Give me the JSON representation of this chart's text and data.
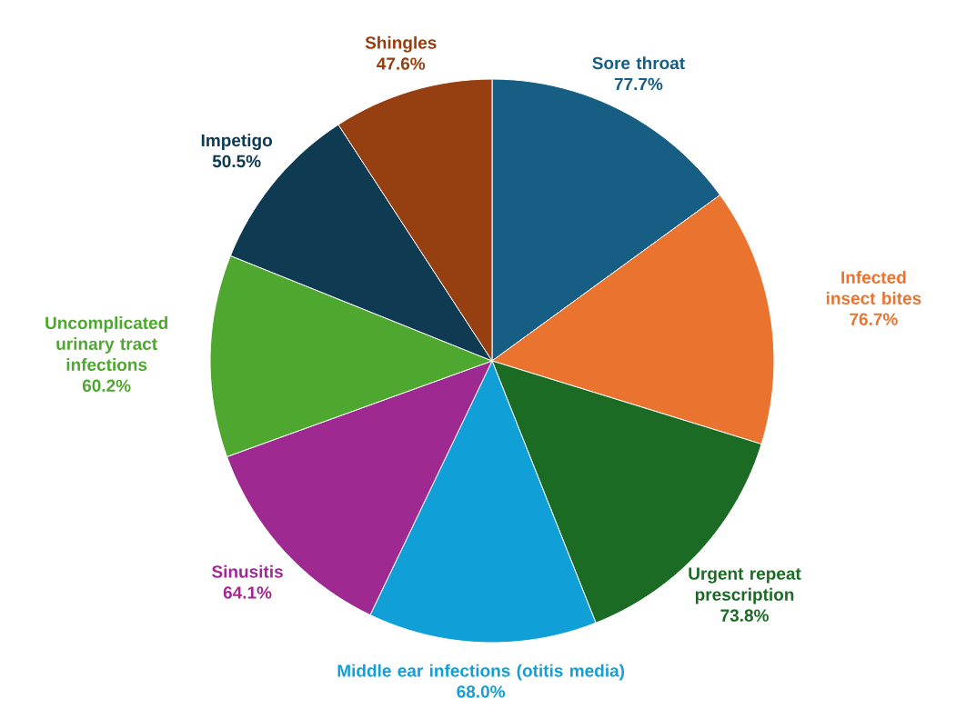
{
  "chart_data": {
    "type": "pie",
    "categories": [
      "Sore throat",
      "Infected insect bites",
      "Urgent repeat prescription",
      "Middle ear infections (otitis media)",
      "Sinusitis",
      "Uncomplicated urinary tract infections",
      "Impetigo",
      "Shingles"
    ],
    "values": [
      77.7,
      76.7,
      73.8,
      68.0,
      64.1,
      60.2,
      50.5,
      47.6
    ],
    "value_labels": [
      "77.7%",
      "76.7%",
      "73.8%",
      "68.0%",
      "64.1%",
      "60.2%",
      "50.5%",
      "47.6%"
    ],
    "colors": [
      "#175e84",
      "#e9732f",
      "#1b6b24",
      "#119fd7",
      "#9e2a91",
      "#4ea72e",
      "#0e3a52",
      "#963f11"
    ]
  }
}
